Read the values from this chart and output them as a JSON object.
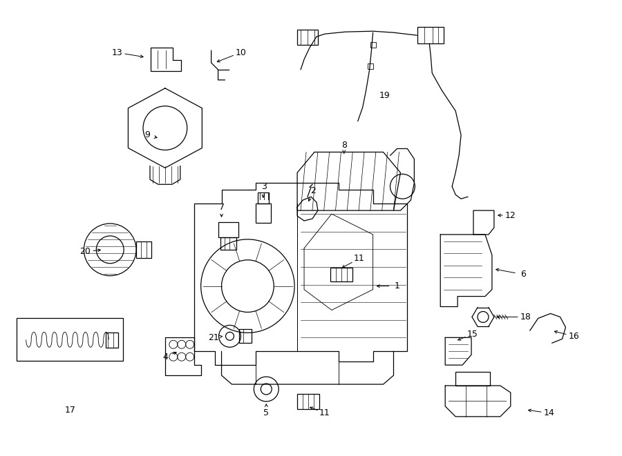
{
  "bg_color": "#ffffff",
  "line_color": "#000000",
  "fig_width": 9.0,
  "fig_height": 6.61,
  "dpi": 100,
  "lw": 0.9
}
